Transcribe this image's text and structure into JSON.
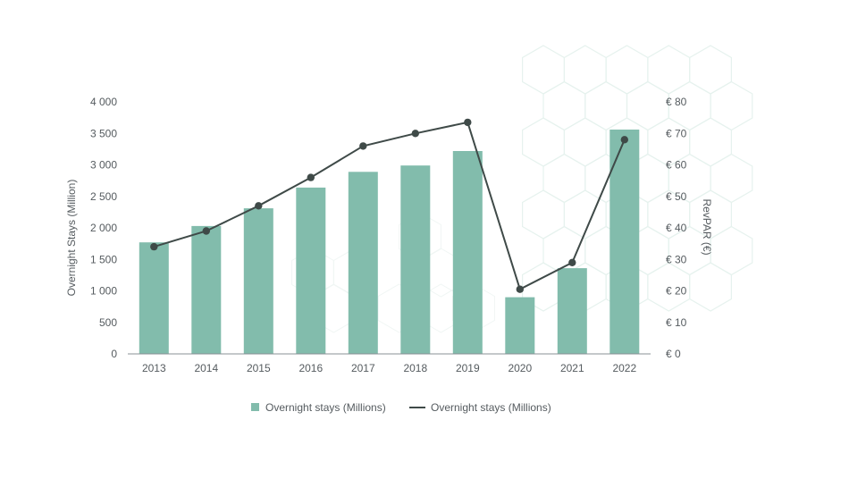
{
  "chart_data": {
    "type": "bar",
    "categories": [
      "2013",
      "2014",
      "2015",
      "2016",
      "2017",
      "2018",
      "2019",
      "2020",
      "2021",
      "2022"
    ],
    "series": [
      {
        "name": "Overnight stays (Millions)",
        "type": "bar",
        "axis": "left",
        "color": "#82bcac",
        "values": [
          1770,
          2030,
          2310,
          2640,
          2890,
          2990,
          3220,
          900,
          1360,
          3560
        ]
      },
      {
        "name": "Overnight stays (Millions)",
        "type": "line",
        "axis": "right",
        "color": "#3f4a48",
        "values": [
          34,
          39,
          47,
          56,
          66,
          70,
          73.5,
          20.5,
          29,
          68
        ]
      }
    ],
    "ylabel": "Overnight Stays (Million)",
    "y2label": "RevPAR (€)",
    "ylim": [
      0,
      4000
    ],
    "y2lim": [
      0,
      80
    ],
    "yticks": [
      0,
      500,
      1000,
      1500,
      2000,
      2500,
      3000,
      3500,
      4000
    ],
    "y2ticks": [
      0,
      10,
      20,
      30,
      40,
      50,
      60,
      70,
      80
    ],
    "ytick_labels": [
      "0",
      "500",
      "1 000",
      "1 500",
      "2 000",
      "2 500",
      "3 000",
      "3 500",
      "4 000"
    ],
    "y2tick_labels": [
      "€ 0",
      "€ 10",
      "€ 20",
      "€ 30",
      "€ 40",
      "€ 50",
      "€ 60",
      "€ 70",
      "€ 80"
    ],
    "grid": false,
    "legend_position": "bottom-center",
    "background_pattern": "hexagon-outline",
    "pattern_color": "#e6f2ee"
  }
}
